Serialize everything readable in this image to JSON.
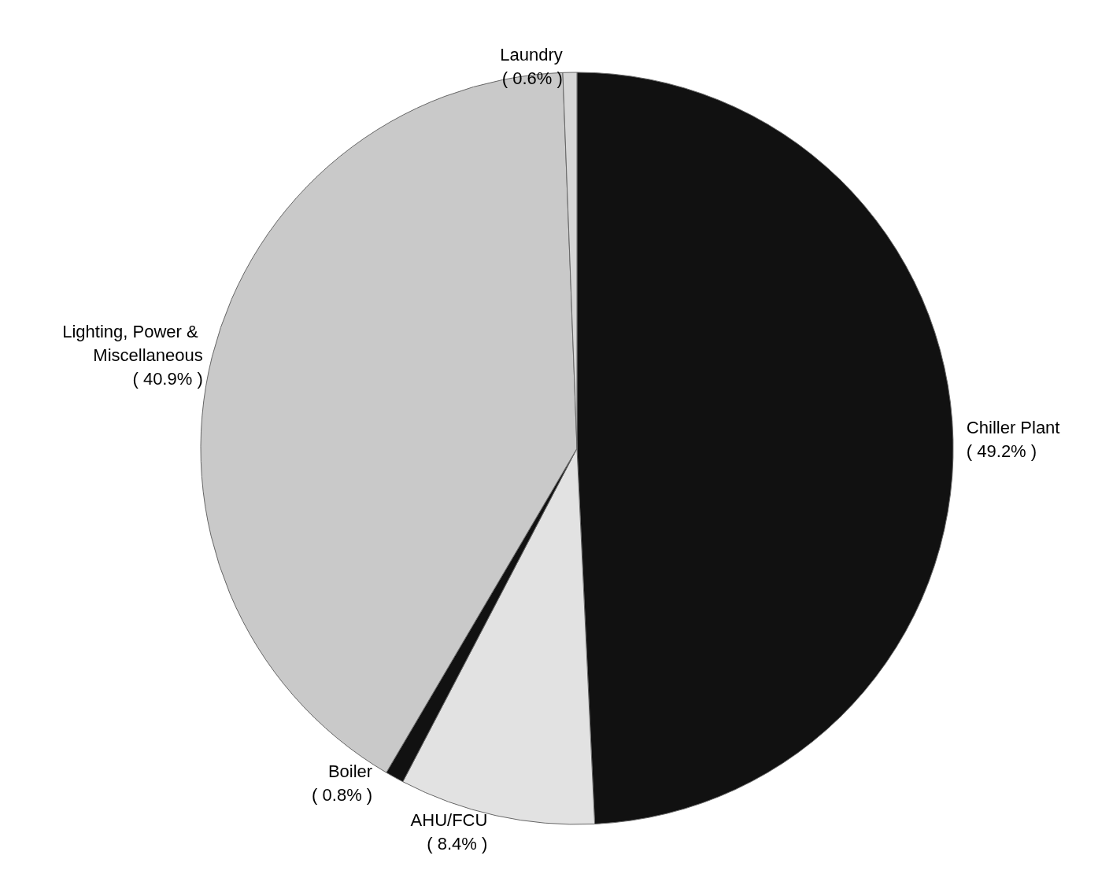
{
  "chart_data": {
    "type": "pie",
    "categories": [
      "Chiller Plant",
      "AHU/FCU",
      "Boiler",
      "Lighting, Power & Miscellaneous",
      "Laundry"
    ],
    "values": [
      49.2,
      8.4,
      0.8,
      40.9,
      0.6
    ],
    "colors": [
      "#111111",
      "#e2e2e2",
      "#111111",
      "#c9c9c9",
      "#d6d6d6"
    ],
    "value_labels": [
      "( 49.2% )",
      "( 8.4% )",
      "( 0.8% )",
      "( 40.9% )",
      "( 0.6% )"
    ],
    "legend": false
  }
}
